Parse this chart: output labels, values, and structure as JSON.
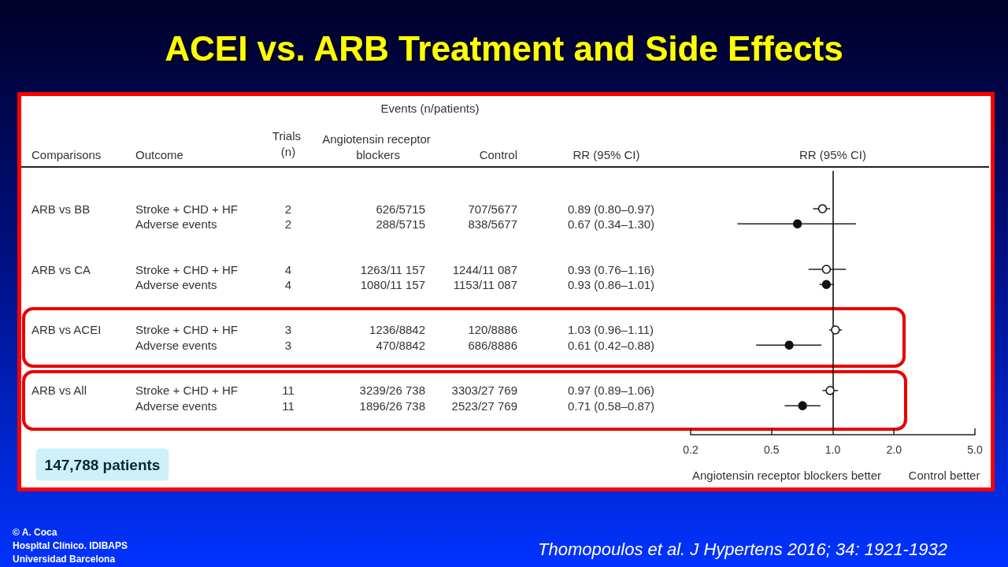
{
  "chart_data": {
    "type": "scatter",
    "title": "ACEI vs. ARB Treatment and Side Effects",
    "xlabel": "RR (95% CI)",
    "orientation": "horizontal",
    "log": "x",
    "tick_labels": "x",
    "categories": [
      null,
      null,
      null,
      null,
      null,
      null,
      null,
      null,
      null,
      null,
      null,
      null,
      null,
      null,
      null,
      null,
      null
    ],
    "series": [
      {
        "color": "#ffffff",
        "marker": "circle",
        "values": [
          null,
          null,
          0.89,
          null,
          null,
          null,
          0.93,
          null,
          null,
          null,
          1.03,
          null,
          null,
          null,
          0.97,
          null,
          null
        ],
        "errors": [
          null,
          null,
          [
            0.8,
            0.97
          ],
          null,
          null,
          null,
          [
            0.76,
            1.16
          ],
          null,
          null,
          null,
          [
            0.96,
            1.11
          ],
          null,
          null,
          null,
          [
            0.89,
            1.06
          ],
          null,
          null
        ],
        "name": null
      },
      {
        "color": "#111111",
        "marker": "circle",
        "values": [
          null,
          null,
          null,
          0.67,
          null,
          null,
          null,
          0.93,
          null,
          null,
          null,
          0.61,
          null,
          null,
          null,
          0.71,
          null
        ],
        "errors": [
          null,
          null,
          null,
          [
            0.34,
            1.3
          ],
          null,
          null,
          null,
          [
            0.86,
            1.01
          ],
          null,
          null,
          null,
          [
            0.42,
            0.88
          ],
          null,
          null,
          null,
          [
            0.58,
            0.87
          ],
          null
        ],
        "name": null
      }
    ],
    "xlim": [
      0.2,
      5
    ],
    "xticks": [
      0.2,
      0.5,
      {
        "value": 1,
        "label": "1.0"
      },
      {
        "value": 2,
        "label": "2.0"
      },
      {
        "value": 5,
        "label": "5.0"
      }
    ],
    "ref_lines": [
      {
        "axis": "x",
        "value": 1,
        "label": null,
        "color": "#000000",
        "line_style": "solid"
      }
    ],
    "annotations": [
      "Events (n/patients)",
      "Comparisons",
      "Outcome",
      "Trials (n)",
      "Angiotensin receptor blockers",
      "Control",
      "RR (95% CI)",
      "Angiotensin receptor blockers better",
      "Control better",
      "147,788 patients",
      "Thomopoulos et al. J Hypertens 2016; 34: 1921-1932",
      "© A. Coca",
      "Hospital Clínico. IDIBAPS",
      "Universidad Barcelona",
      "ARB vs BB",
      "ARB vs CA",
      "ARB vs ACEI",
      "ARB vs All",
      "Stroke + CHD + HF",
      "Adverse events",
      "Stroke + CHD + HF",
      "Adverse events",
      "Stroke + CHD + HF",
      "Adverse events",
      "Stroke + CHD + HF",
      "Adverse events",
      "2",
      "2",
      "4",
      "4",
      "3",
      "3",
      "11",
      "11",
      "626/5715",
      "288/5715",
      "1263/11 157",
      "1080/11 157",
      "1236/8842",
      "470/8842",
      "3239/26 738",
      "1896/26 738",
      "707/5677",
      "838/5677",
      "1244/11 087",
      "1153/11 087",
      "120/8886",
      "686/8886",
      "3303/27 769",
      "2523/27 769",
      "0.89 (0.80–0.97)",
      "0.67 (0.34–1.30)",
      "0.93 (0.76–1.16)",
      "0.93 (0.86–1.01)",
      "1.03 (0.96–1.11)",
      "0.61 (0.42–0.88)",
      "0.97 (0.89–1.06)",
      "0.71 (0.58–0.87)"
    ]
  }
}
